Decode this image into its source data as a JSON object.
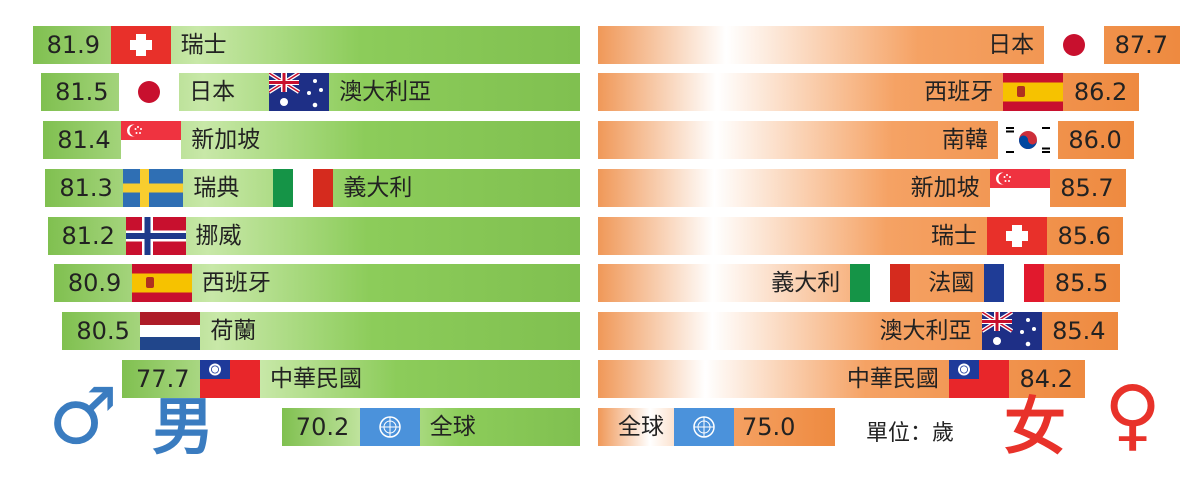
{
  "chart_data": [
    {
      "type": "bar",
      "title": "",
      "series": [
        {
          "name": "男",
          "values": [
            81.9,
            81.5,
            81.4,
            81.3,
            81.2,
            80.9,
            80.5,
            77.7,
            70.2
          ]
        }
      ],
      "categories": [
        "瑞士",
        "日本 澳大利亞",
        "新加坡",
        "瑞典 義大利",
        "挪威",
        "西班牙",
        "荷蘭",
        "中華民國",
        "全球"
      ],
      "rows": [
        {
          "value": 81.9,
          "countries": [
            {
              "name": "瑞士",
              "flag": "switzerland-flag"
            }
          ]
        },
        {
          "value": 81.5,
          "countries": [
            {
              "name": "日本",
              "flag": "japan-flag"
            },
            {
              "name": "澳大利亞",
              "flag": "australia-flag"
            }
          ]
        },
        {
          "value": 81.4,
          "countries": [
            {
              "name": "新加坡",
              "flag": "singapore-flag"
            }
          ]
        },
        {
          "value": 81.3,
          "countries": [
            {
              "name": "瑞典",
              "flag": "sweden-flag"
            },
            {
              "name": "義大利",
              "flag": "italy-flag"
            }
          ]
        },
        {
          "value": 81.2,
          "countries": [
            {
              "name": "挪威",
              "flag": "norway-flag"
            }
          ]
        },
        {
          "value": 80.9,
          "countries": [
            {
              "name": "西班牙",
              "flag": "spain-flag"
            }
          ]
        },
        {
          "value": 80.5,
          "countries": [
            {
              "name": "荷蘭",
              "flag": "netherlands-flag"
            }
          ]
        },
        {
          "value": 77.7,
          "countries": [
            {
              "name": "中華民國",
              "flag": "roc-flag"
            }
          ]
        },
        {
          "value": 70.2,
          "countries": [
            {
              "name": "全球",
              "flag": "un-flag"
            }
          ]
        }
      ],
      "color": "#8cc85a",
      "symbol": "♂",
      "label": "男"
    },
    {
      "type": "bar",
      "title": "",
      "series": [
        {
          "name": "女",
          "values": [
            87.7,
            86.2,
            86.0,
            85.7,
            85.6,
            85.5,
            85.4,
            84.2,
            75.0
          ]
        }
      ],
      "categories": [
        "日本",
        "西班牙",
        "南韓",
        "新加坡",
        "瑞士",
        "義大利 法國",
        "澳大利亞",
        "中華民國",
        "全球"
      ],
      "rows": [
        {
          "value": 87.7,
          "countries": [
            {
              "name": "日本",
              "flag": "japan-flag"
            }
          ]
        },
        {
          "value": 86.2,
          "countries": [
            {
              "name": "西班牙",
              "flag": "spain-flag"
            }
          ]
        },
        {
          "value": 86.0,
          "countries": [
            {
              "name": "南韓",
              "flag": "korea-flag"
            }
          ]
        },
        {
          "value": 85.7,
          "countries": [
            {
              "name": "新加坡",
              "flag": "singapore-flag"
            }
          ]
        },
        {
          "value": 85.6,
          "countries": [
            {
              "name": "瑞士",
              "flag": "switzerland-flag"
            }
          ]
        },
        {
          "value": 85.5,
          "countries": [
            {
              "name": "義大利",
              "flag": "italy-flag"
            },
            {
              "name": "法國",
              "flag": "france-flag"
            }
          ]
        },
        {
          "value": 85.4,
          "countries": [
            {
              "name": "澳大利亞",
              "flag": "australia-flag"
            }
          ]
        },
        {
          "value": 84.2,
          "countries": [
            {
              "name": "中華民國",
              "flag": "roc-flag"
            }
          ]
        },
        {
          "value": 75.0,
          "countries": [
            {
              "name": "全球",
              "flag": "un-flag"
            }
          ]
        }
      ],
      "color": "#f08c40",
      "symbol": "♀",
      "label": "女"
    }
  ],
  "unit_label": "單位：歲",
  "colors": {
    "male": "#3a7cc0",
    "female": "#e8322a"
  }
}
